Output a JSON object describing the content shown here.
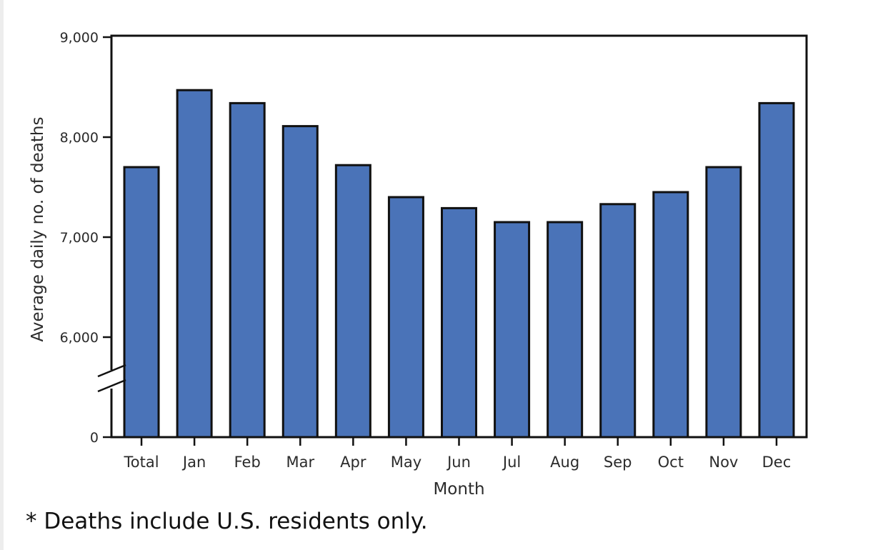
{
  "chart_data": {
    "type": "bar",
    "title": "",
    "xlabel": "Month",
    "ylabel": "Average daily no. of deaths",
    "categories": [
      "Total",
      "Jan",
      "Feb",
      "Mar",
      "Apr",
      "May",
      "Jun",
      "Jul",
      "Aug",
      "Sep",
      "Oct",
      "Nov",
      "Dec"
    ],
    "values": [
      7700,
      8470,
      8340,
      8110,
      7720,
      7400,
      7290,
      7150,
      7150,
      7330,
      7450,
      7700,
      8340
    ],
    "y_ticks": [
      "0",
      "6,000",
      "7,000",
      "8,000",
      "9,000"
    ],
    "ylim": [
      0,
      9000
    ],
    "axis_break": "between 0 and 6,000",
    "grid": false,
    "legend": "none",
    "colors": {
      "bar": "#4a73b8",
      "bar_edge": "#111111",
      "axis": "#111111"
    }
  },
  "footnote": "* Deaths include U.S. residents only."
}
